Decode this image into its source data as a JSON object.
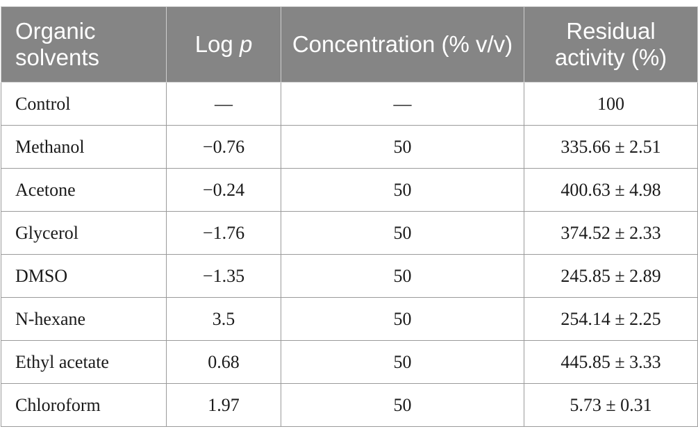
{
  "table": {
    "headers": [
      {
        "text_main": "Organic solvents",
        "text_italic": ""
      },
      {
        "text_main": "Log ",
        "text_italic": "p"
      },
      {
        "text_main": "Concentration (% v/v)",
        "text_italic": ""
      },
      {
        "text_main": "Residual activity (%)",
        "text_italic": ""
      }
    ],
    "rows": [
      {
        "solvent": "Control",
        "logp": "—",
        "concentration": "—",
        "activity": "100"
      },
      {
        "solvent": "Methanol",
        "logp": "−0.76",
        "concentration": "50",
        "activity": "335.66 ± 2.51"
      },
      {
        "solvent": "Acetone",
        "logp": "−0.24",
        "concentration": "50",
        "activity": "400.63 ± 4.98"
      },
      {
        "solvent": "Glycerol",
        "logp": "−1.76",
        "concentration": "50",
        "activity": "374.52 ± 2.33"
      },
      {
        "solvent": "DMSO",
        "logp": "−1.35",
        "concentration": "50",
        "activity": "245.85 ± 2.89"
      },
      {
        "solvent": "N-hexane",
        "logp": "3.5",
        "concentration": "50",
        "activity": "254.14 ± 2.25"
      },
      {
        "solvent": "Ethyl acetate",
        "logp": "0.68",
        "concentration": "50",
        "activity": "445.85 ± 3.33"
      },
      {
        "solvent": "Chloroform",
        "logp": "1.97",
        "concentration": "50",
        "activity": "5.73 ± 0.31"
      }
    ]
  },
  "colors": {
    "header_background": "#858585",
    "header_text": "#ffffff",
    "body_text": "#1a1a1a",
    "grid_line": "#9a9a9a"
  }
}
